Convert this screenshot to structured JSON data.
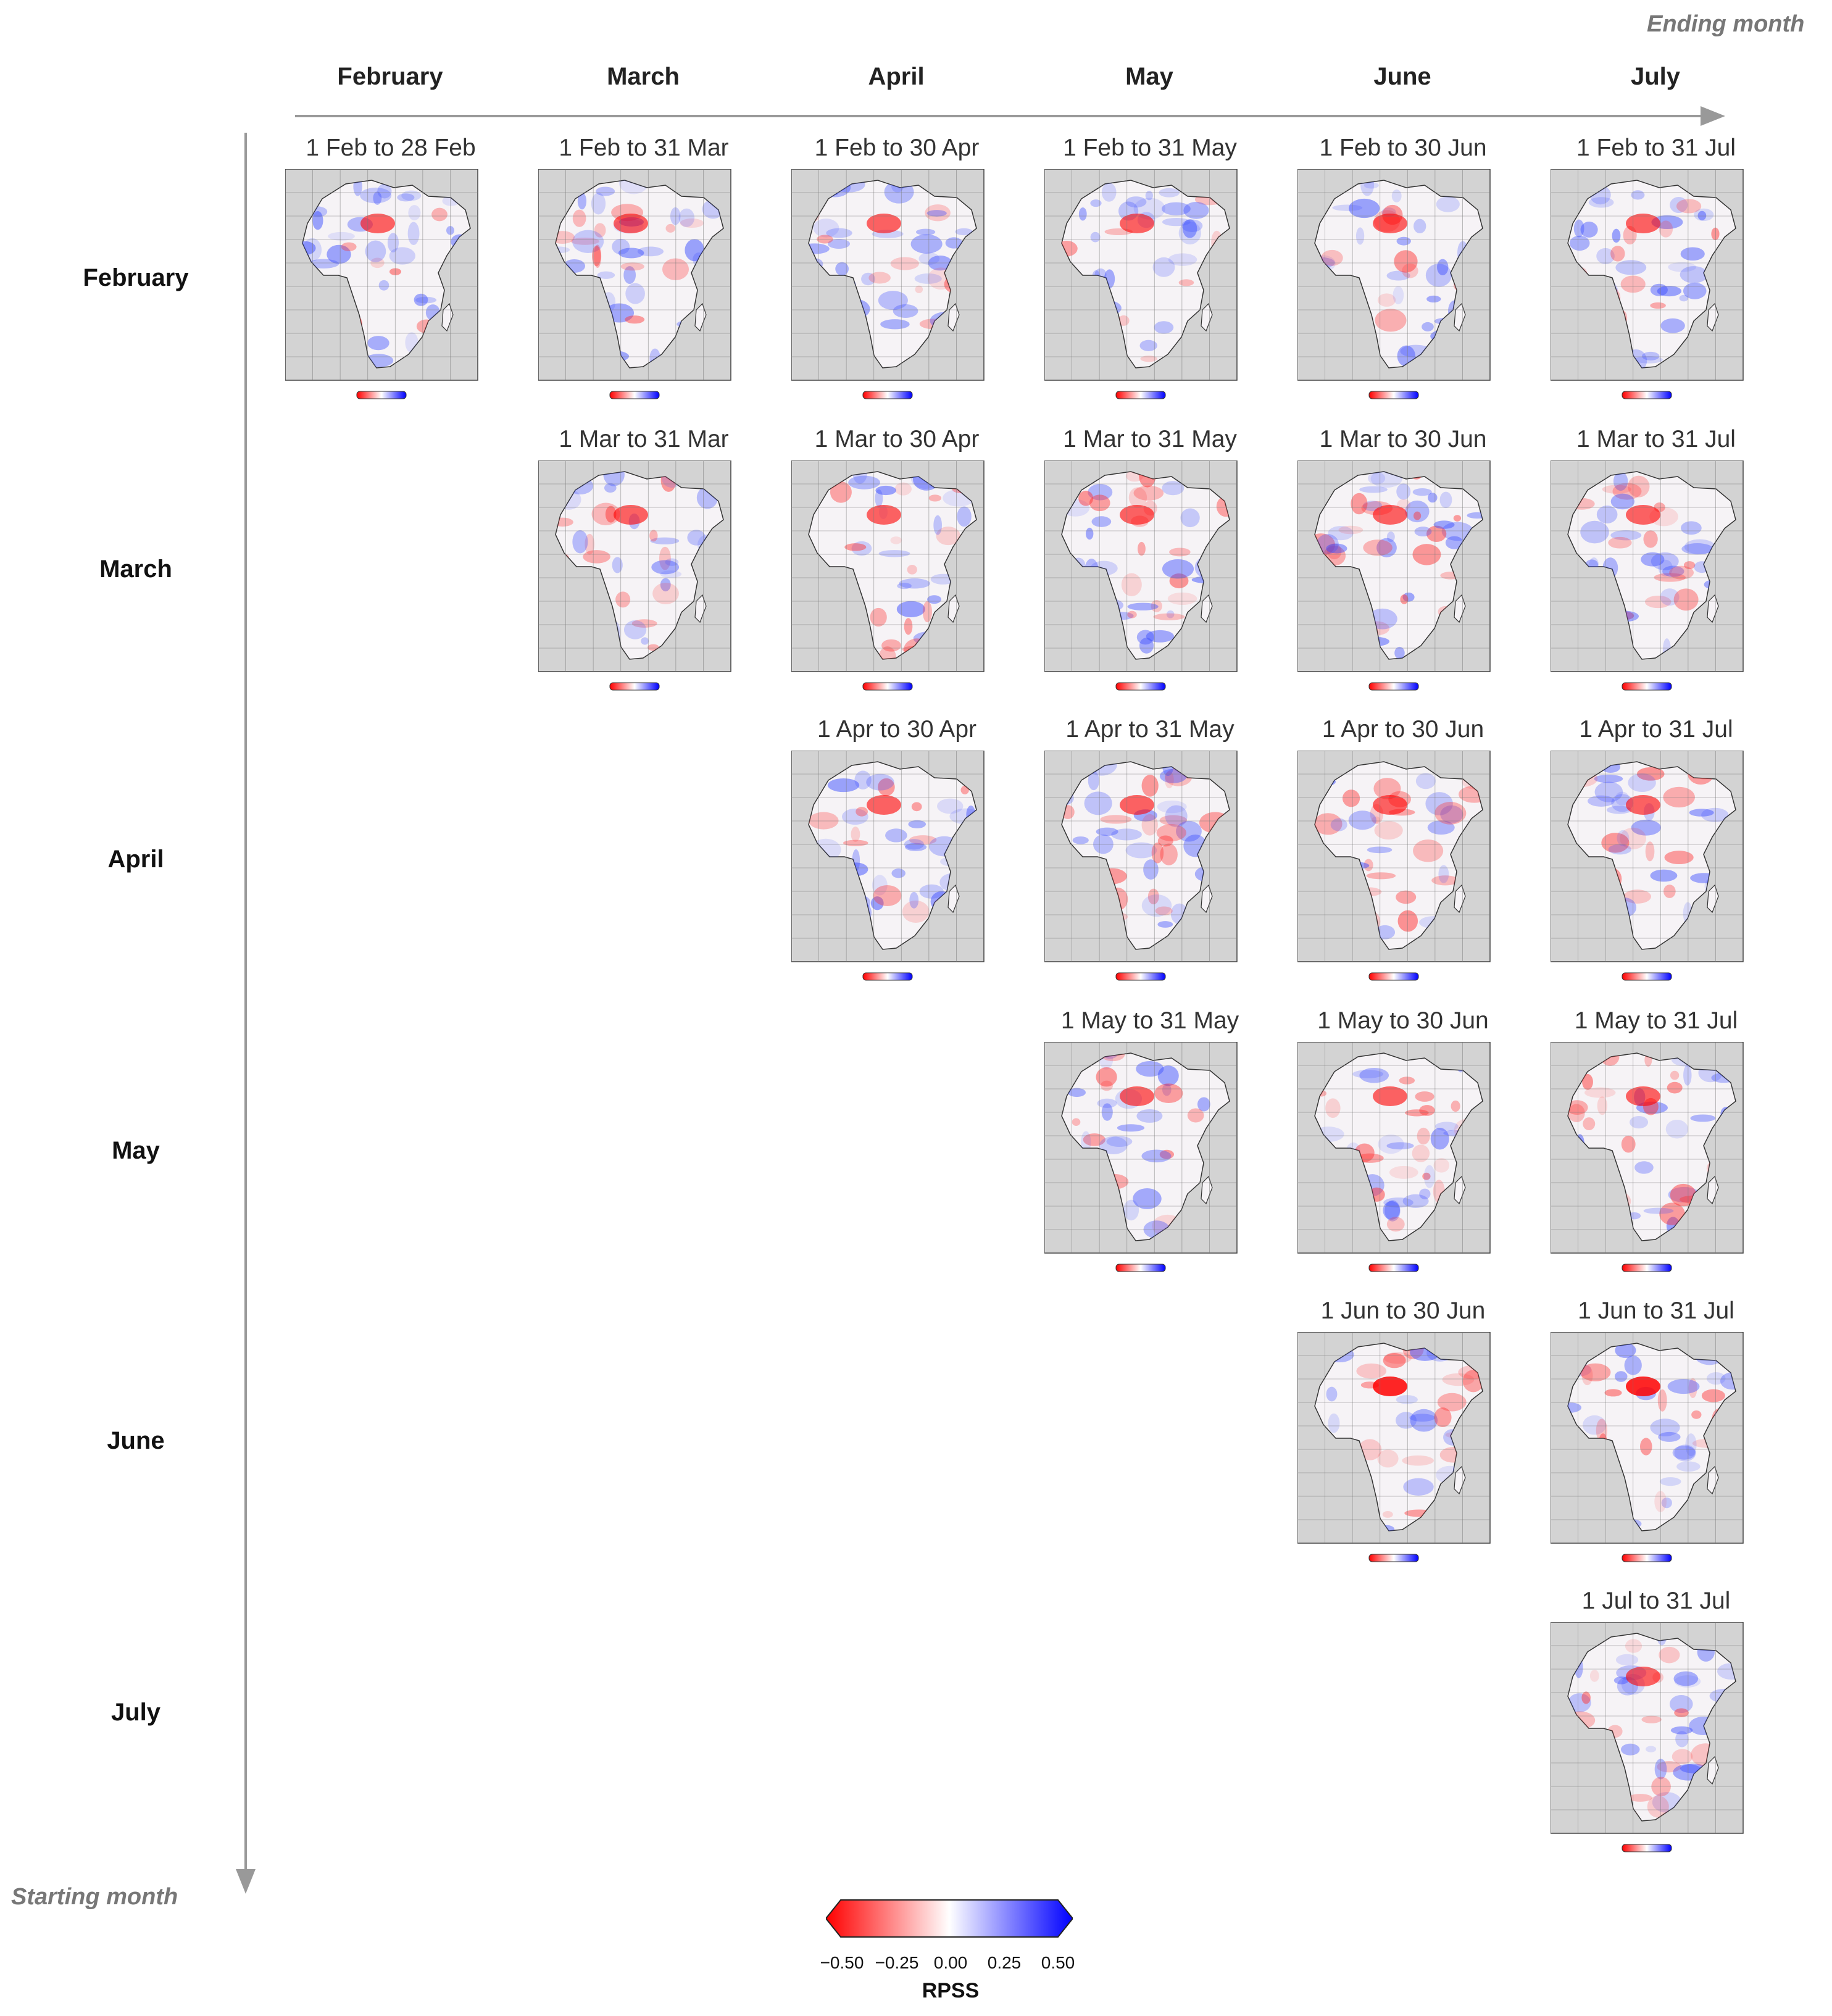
{
  "axes": {
    "ending_month_label": "Ending month",
    "starting_month_label": "Starting month"
  },
  "column_headers": [
    "February",
    "March",
    "April",
    "May",
    "June",
    "July"
  ],
  "row_headers": [
    "February",
    "March",
    "April",
    "May",
    "June",
    "July"
  ],
  "grid": [
    [
      "1 Feb to 28 Feb",
      "1 Feb to 31 Mar",
      "1 Feb to 30 Apr",
      "1 Feb to 31 May",
      "1 Feb to 30 Jun",
      "1 Feb to 31 Jul"
    ],
    [
      null,
      "1 Mar to 31 Mar",
      "1 Mar to 30 Apr",
      "1 Mar to 31 May",
      "1 Mar to 30 Jun",
      "1 Mar to 31 Jul"
    ],
    [
      null,
      null,
      "1 Apr to 30 Apr",
      "1 Apr to 31 May",
      "1 Apr to 30 Jun",
      "1 Apr to 31 Jul"
    ],
    [
      null,
      null,
      null,
      "1 May to 31 May",
      "1 May to 30 Jun",
      "1 May to 31 Jul"
    ],
    [
      null,
      null,
      null,
      null,
      "1 Jun to 30 Jun",
      "1 Jun to 31 Jul"
    ],
    [
      null,
      null,
      null,
      null,
      null,
      "1 Jul to 31 Jul"
    ]
  ],
  "legend": {
    "title": "RPSS",
    "ticks": [
      "−0.50",
      "−0.25",
      "0.00",
      "0.25",
      "0.50"
    ],
    "colors": {
      "low": "#ff0000",
      "mid": "#ffffff",
      "high": "#0000ff"
    }
  },
  "colors": {
    "arrow": "#999999",
    "map_background": "#d3d3d3",
    "land": "#f6f3f6"
  }
}
